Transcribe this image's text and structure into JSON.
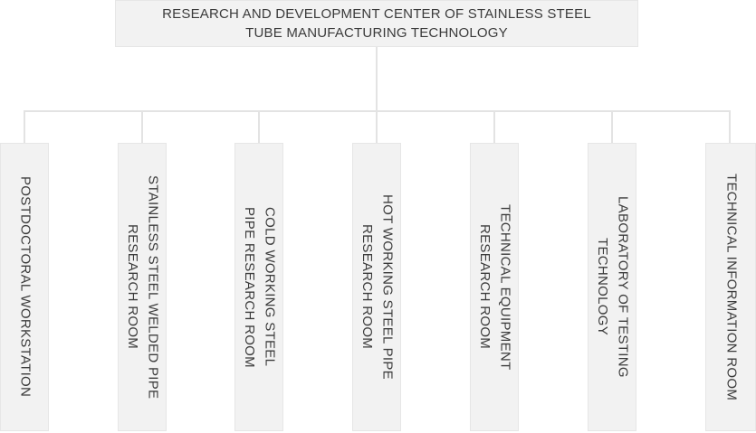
{
  "org_chart": {
    "root": {
      "label": "RESEARCH AND DEVELOPMENT CENTER OF STAINLESS STEEL\nTUBE MANUFACTURING TECHNOLOGY"
    },
    "children": [
      {
        "label": "POSTDOCTORAL WORKSTATION"
      },
      {
        "label": "STAINLESS STEEL WELDED PIPE\nRESEARCH ROOM"
      },
      {
        "label": "COLD WORKING STEEL\nPIPE RESEARCH ROOM"
      },
      {
        "label": "HOT WORKING STEEL PIPE\nRESEARCH ROOM"
      },
      {
        "label": "TECHNICAL EQUIPMENT\nRESEARCH ROOM"
      },
      {
        "label": "LABORATORY OF TESTING\nTECHNOLOGY"
      },
      {
        "label": "TECHNICAL INFORMATION ROOM"
      }
    ]
  },
  "colors": {
    "box_fill": "#f2f2f2",
    "box_border": "#e6e6e6",
    "connector_line": "#e3e3e3",
    "text": "#3b3b3b",
    "background": "#ffffff"
  }
}
